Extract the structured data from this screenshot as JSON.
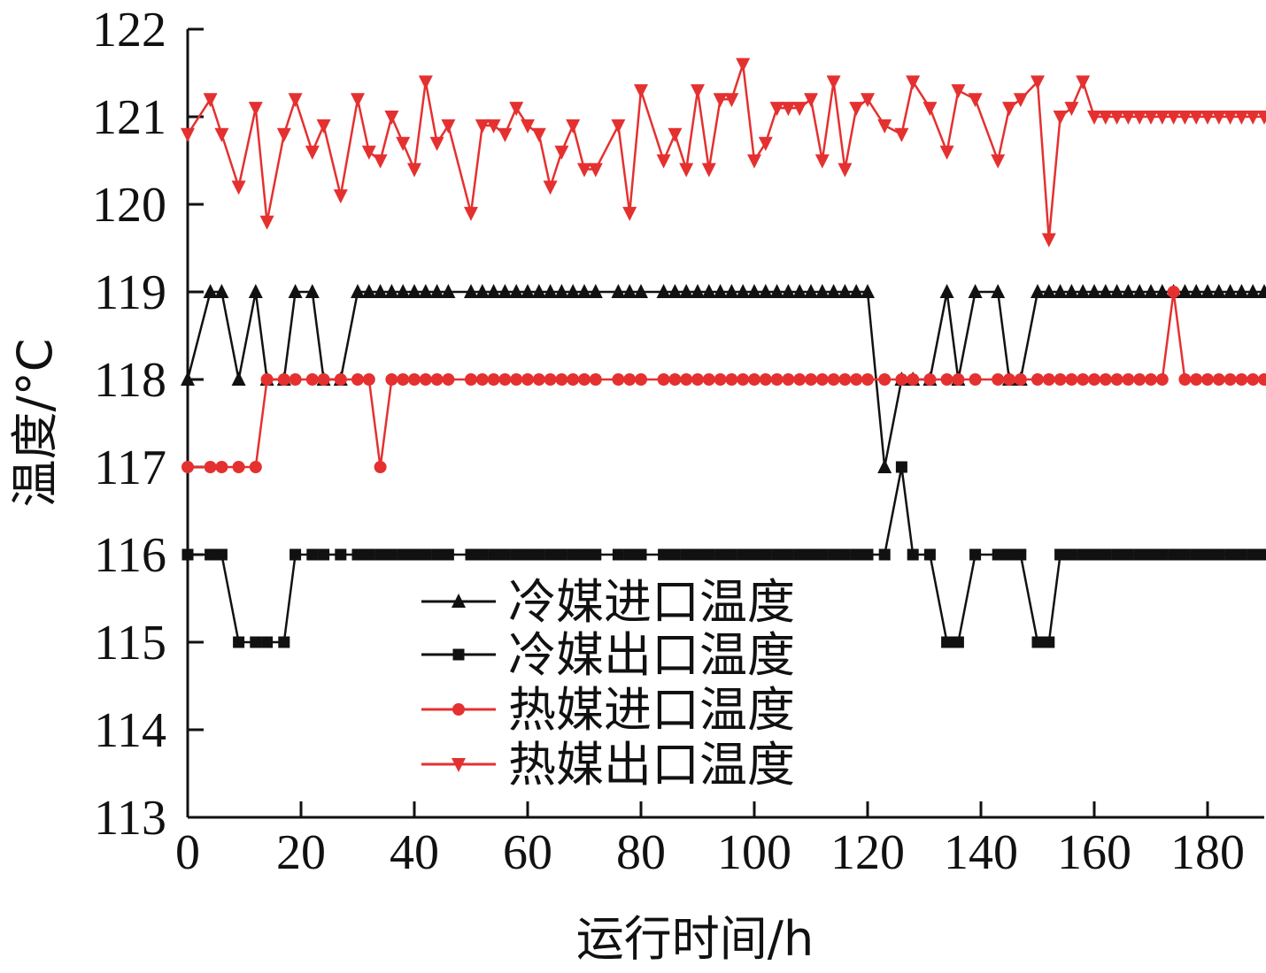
{
  "chart_data": {
    "type": "line",
    "xlabel": "运行时间/h",
    "ylabel": "温度/°C",
    "xlim": [
      0,
      190
    ],
    "ylim": [
      113,
      122
    ],
    "xticks": [
      0,
      20,
      40,
      60,
      80,
      100,
      120,
      140,
      160,
      180
    ],
    "yticks": [
      113,
      114,
      115,
      116,
      117,
      118,
      119,
      120,
      121,
      122
    ],
    "grid": false,
    "legend_position": "center-bottom",
    "series": [
      {
        "name": "冷媒进口温度",
        "color": "#111111",
        "marker": "triangle-up",
        "x": [
          0,
          4,
          6,
          9,
          12,
          14,
          17,
          19,
          22,
          24,
          27,
          30,
          32,
          34,
          36,
          38,
          40,
          42,
          44,
          46,
          50,
          52,
          54,
          56,
          58,
          60,
          62,
          64,
          66,
          68,
          70,
          72,
          76,
          78,
          80,
          84,
          86,
          88,
          90,
          92,
          94,
          96,
          98,
          100,
          102,
          104,
          106,
          108,
          110,
          112,
          114,
          116,
          118,
          120,
          123,
          126,
          128,
          131,
          134,
          136,
          139,
          143,
          145,
          147,
          150,
          152,
          154,
          156,
          158,
          160,
          162,
          164,
          166,
          168,
          170,
          172,
          174,
          176,
          178,
          180,
          182,
          184,
          186,
          188,
          190
        ],
        "y": [
          118,
          119,
          119,
          118,
          119,
          118,
          118,
          119,
          119,
          118,
          118,
          119,
          119,
          119,
          119,
          119,
          119,
          119,
          119,
          119,
          119,
          119,
          119,
          119,
          119,
          119,
          119,
          119,
          119,
          119,
          119,
          119,
          119,
          119,
          119,
          119,
          119,
          119,
          119,
          119,
          119,
          119,
          119,
          119,
          119,
          119,
          119,
          119,
          119,
          119,
          119,
          119,
          119,
          119,
          117,
          118,
          118,
          118,
          119,
          118,
          119,
          119,
          118,
          118,
          119,
          119,
          119,
          119,
          119,
          119,
          119,
          119,
          119,
          119,
          119,
          119,
          119,
          119,
          119,
          119,
          119,
          119,
          119,
          119,
          119
        ]
      },
      {
        "name": "冷媒出口温度",
        "color": "#111111",
        "marker": "square",
        "x": [
          0,
          4,
          6,
          9,
          12,
          14,
          17,
          19,
          22,
          24,
          27,
          30,
          32,
          34,
          36,
          38,
          40,
          42,
          44,
          46,
          50,
          52,
          54,
          56,
          58,
          60,
          62,
          64,
          66,
          68,
          70,
          72,
          76,
          78,
          80,
          84,
          86,
          88,
          90,
          92,
          94,
          96,
          98,
          100,
          102,
          104,
          106,
          108,
          110,
          112,
          114,
          116,
          118,
          120,
          123,
          126,
          128,
          131,
          134,
          136,
          139,
          143,
          145,
          147,
          150,
          152,
          154,
          156,
          158,
          160,
          162,
          164,
          166,
          168,
          170,
          172,
          174,
          176,
          178,
          180,
          182,
          184,
          186,
          188,
          190
        ],
        "y": [
          116,
          116,
          116,
          115,
          115,
          115,
          115,
          116,
          116,
          116,
          116,
          116,
          116,
          116,
          116,
          116,
          116,
          116,
          116,
          116,
          116,
          116,
          116,
          116,
          116,
          116,
          116,
          116,
          116,
          116,
          116,
          116,
          116,
          116,
          116,
          116,
          116,
          116,
          116,
          116,
          116,
          116,
          116,
          116,
          116,
          116,
          116,
          116,
          116,
          116,
          116,
          116,
          116,
          116,
          116,
          117,
          116,
          116,
          115,
          115,
          116,
          116,
          116,
          116,
          115,
          115,
          116,
          116,
          116,
          116,
          116,
          116,
          116,
          116,
          116,
          116,
          116,
          116,
          116,
          116,
          116,
          116,
          116,
          116,
          116
        ]
      },
      {
        "name": "热媒进口温度",
        "color": "#e53030",
        "marker": "circle",
        "x": [
          0,
          4,
          6,
          9,
          12,
          14,
          17,
          19,
          22,
          24,
          27,
          30,
          32,
          34,
          36,
          38,
          40,
          42,
          44,
          46,
          50,
          52,
          54,
          56,
          58,
          60,
          62,
          64,
          66,
          68,
          70,
          72,
          76,
          78,
          80,
          84,
          86,
          88,
          90,
          92,
          94,
          96,
          98,
          100,
          102,
          104,
          106,
          108,
          110,
          112,
          114,
          116,
          118,
          120,
          123,
          126,
          128,
          131,
          134,
          136,
          139,
          143,
          145,
          147,
          150,
          152,
          154,
          156,
          158,
          160,
          162,
          164,
          166,
          168,
          170,
          172,
          174,
          176,
          178,
          180,
          182,
          184,
          186,
          188,
          190
        ],
        "y": [
          117,
          117,
          117,
          117,
          117,
          118,
          118,
          118,
          118,
          118,
          118,
          118,
          118,
          117,
          118,
          118,
          118,
          118,
          118,
          118,
          118,
          118,
          118,
          118,
          118,
          118,
          118,
          118,
          118,
          118,
          118,
          118,
          118,
          118,
          118,
          118,
          118,
          118,
          118,
          118,
          118,
          118,
          118,
          118,
          118,
          118,
          118,
          118,
          118,
          118,
          118,
          118,
          118,
          118,
          118,
          118,
          118,
          118,
          118,
          118,
          118,
          118,
          118,
          118,
          118,
          118,
          118,
          118,
          118,
          118,
          118,
          118,
          118,
          118,
          118,
          118,
          119,
          118,
          118,
          118,
          118,
          118,
          118,
          118,
          118
        ]
      },
      {
        "name": "热媒出口温度",
        "color": "#e53030",
        "marker": "triangle-down",
        "x": [
          0,
          4,
          6,
          9,
          12,
          14,
          17,
          19,
          22,
          24,
          27,
          30,
          32,
          34,
          36,
          38,
          40,
          42,
          44,
          46,
          50,
          52,
          54,
          56,
          58,
          60,
          62,
          64,
          66,
          68,
          70,
          72,
          76,
          78,
          80,
          84,
          86,
          88,
          90,
          92,
          94,
          96,
          98,
          100,
          102,
          104,
          106,
          108,
          110,
          112,
          114,
          116,
          118,
          120,
          123,
          126,
          128,
          131,
          134,
          136,
          139,
          143,
          145,
          147,
          150,
          152,
          154,
          156,
          158,
          160,
          162,
          164,
          166,
          168,
          170,
          172,
          174,
          176,
          178,
          180,
          182,
          184,
          186,
          188,
          190
        ],
        "y": [
          120.8,
          121.2,
          120.8,
          120.2,
          121.1,
          119.8,
          120.8,
          121.2,
          120.6,
          120.9,
          120.1,
          121.2,
          120.6,
          120.5,
          121.0,
          120.7,
          120.4,
          121.4,
          120.7,
          120.9,
          119.9,
          120.9,
          120.9,
          120.8,
          121.1,
          120.9,
          120.8,
          120.2,
          120.6,
          120.9,
          120.4,
          120.4,
          120.9,
          119.9,
          121.3,
          120.5,
          120.8,
          120.4,
          121.3,
          120.4,
          121.2,
          121.2,
          121.6,
          120.5,
          120.7,
          121.1,
          121.1,
          121.1,
          121.2,
          120.5,
          121.4,
          120.4,
          121.1,
          121.2,
          120.9,
          120.8,
          121.4,
          121.1,
          120.6,
          121.3,
          121.2,
          120.5,
          121.1,
          121.2,
          121.4,
          119.6,
          121.0,
          121.1,
          121.4,
          121.0,
          121.0,
          121.0,
          121.0,
          121.0,
          121.0,
          121.0,
          121.0,
          121.0,
          121.0,
          121.0,
          121.0,
          121.0,
          121.0,
          121.0,
          121.0
        ]
      }
    ]
  }
}
